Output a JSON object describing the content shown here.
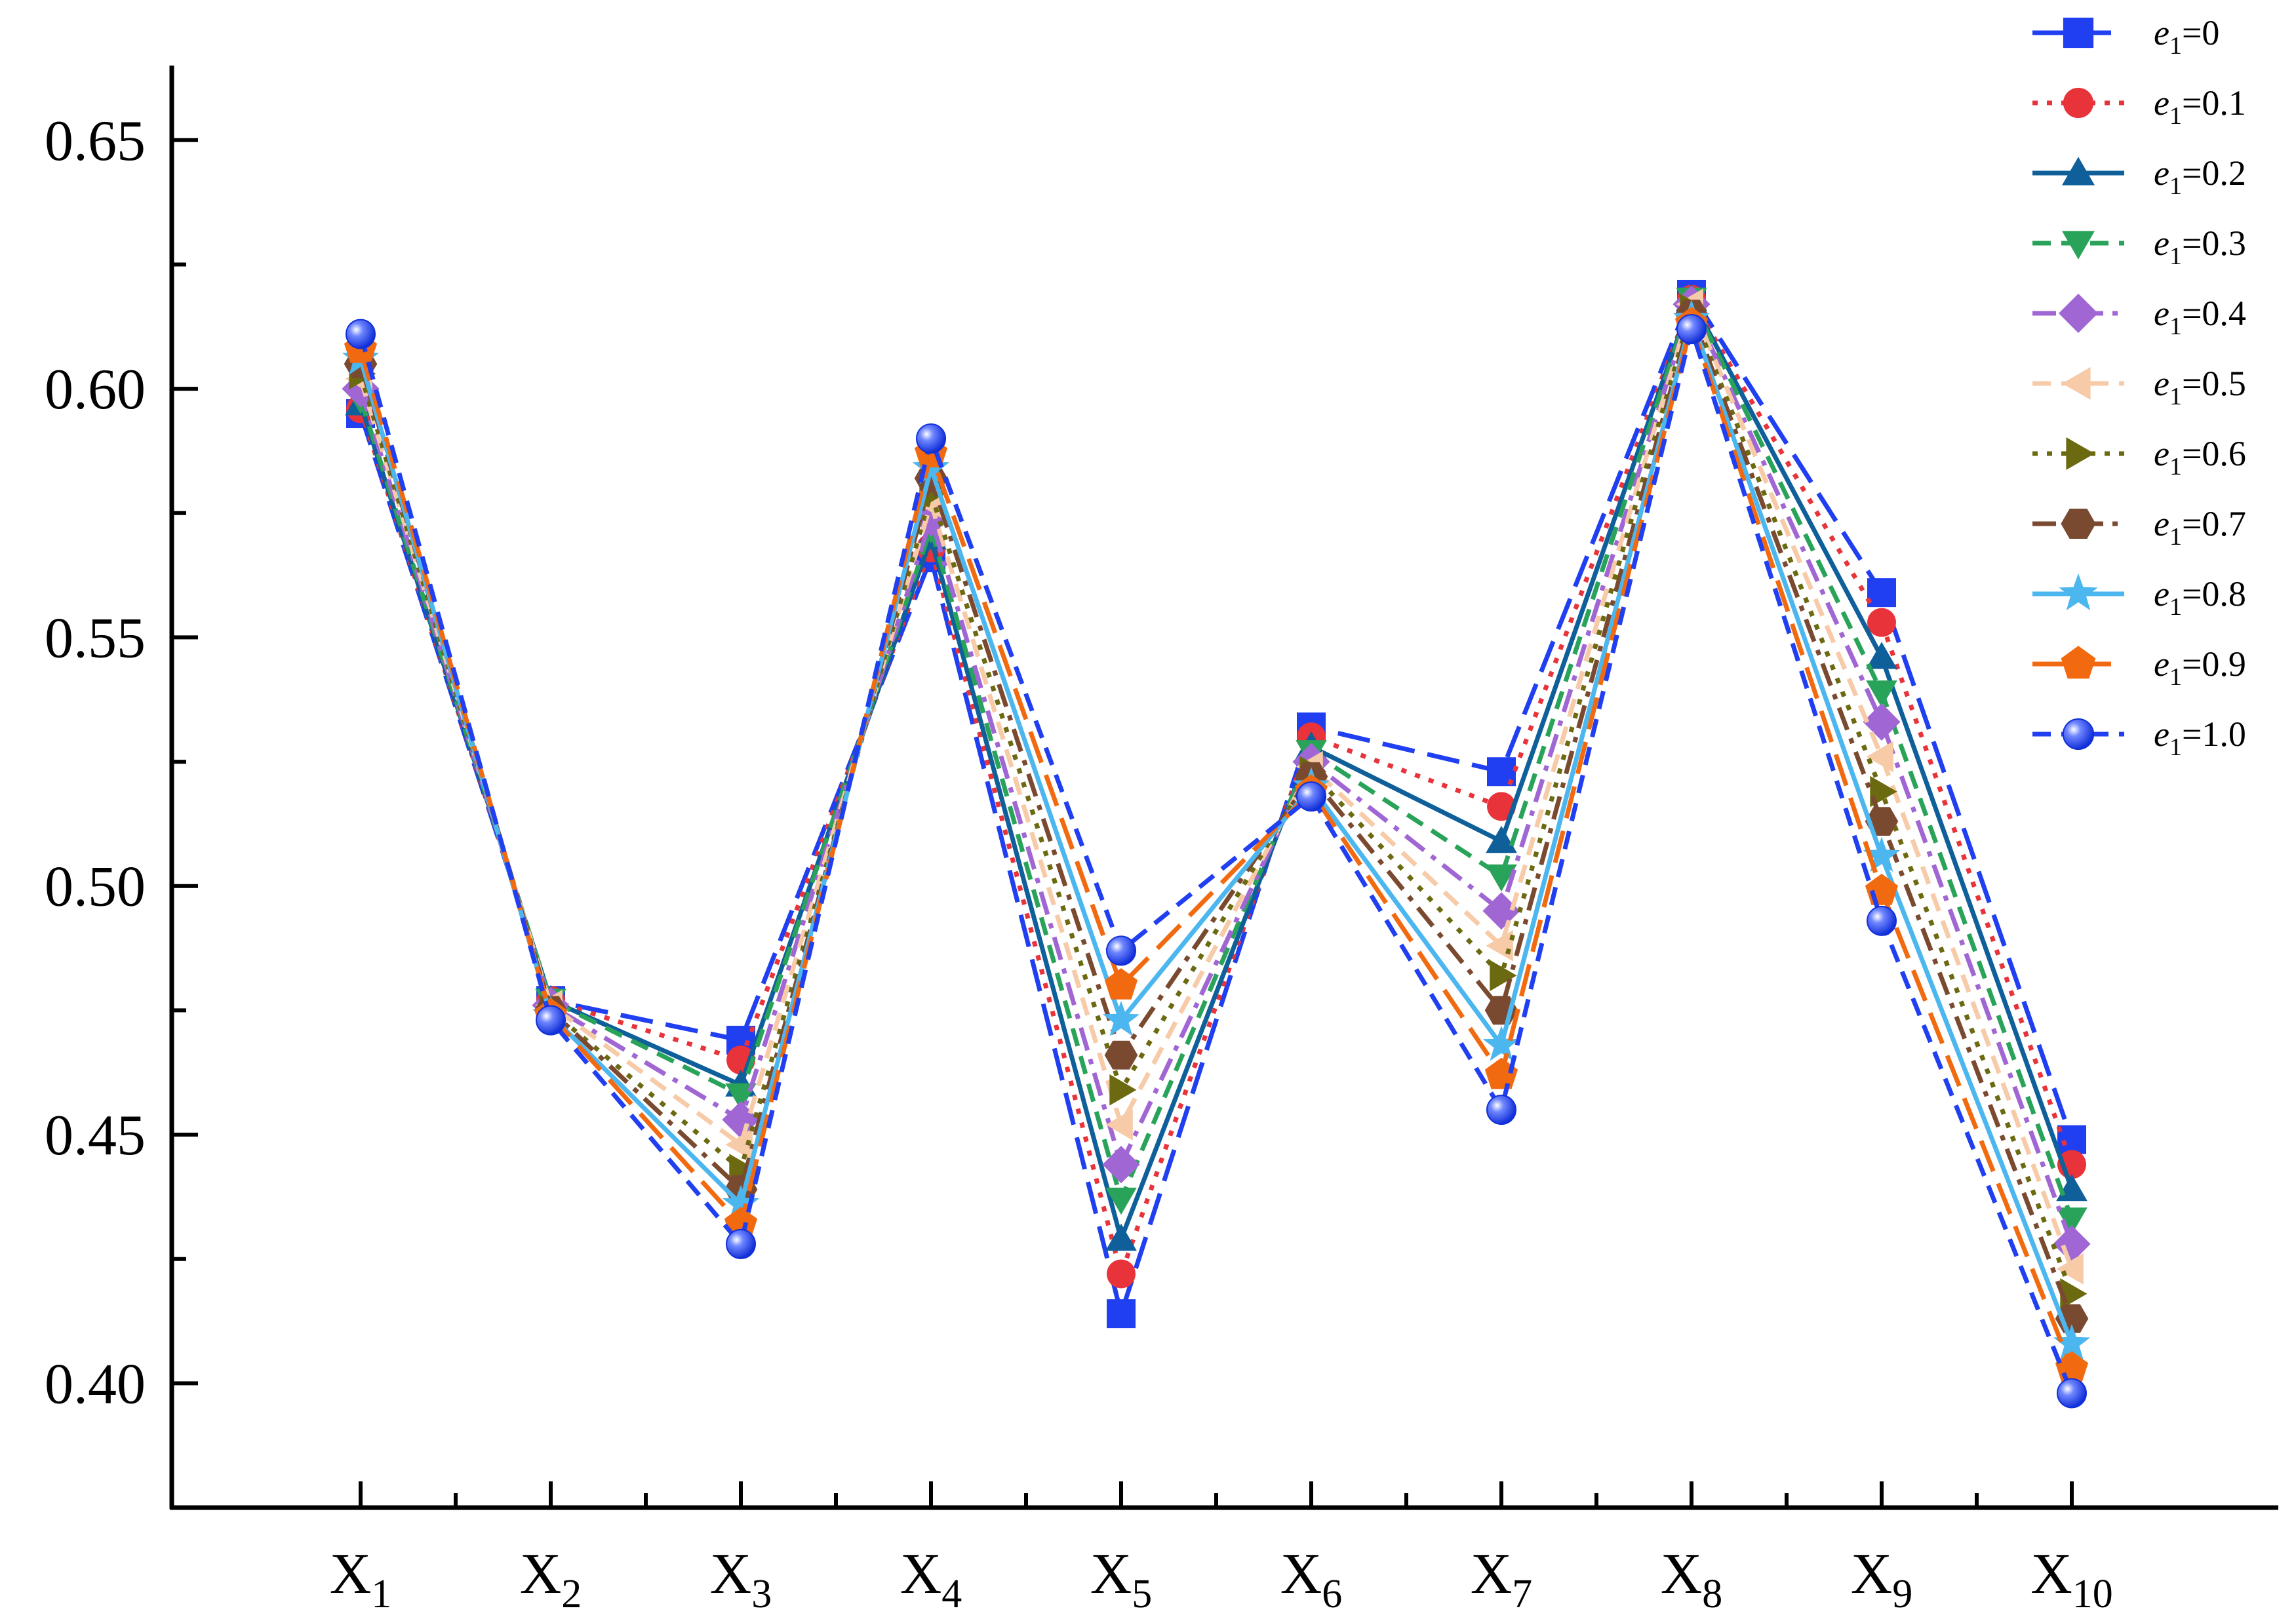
{
  "chart_data": {
    "type": "line",
    "title": "",
    "xlabel": "",
    "ylabel": "",
    "categories": [
      {
        "main": "X",
        "sub": "1"
      },
      {
        "main": "X",
        "sub": "2"
      },
      {
        "main": "X",
        "sub": "3"
      },
      {
        "main": "X",
        "sub": "4"
      },
      {
        "main": "X",
        "sub": "5"
      },
      {
        "main": "X",
        "sub": "6"
      },
      {
        "main": "X",
        "sub": "7"
      },
      {
        "main": "X",
        "sub": "8"
      },
      {
        "main": "X",
        "sub": "9"
      },
      {
        "main": "X",
        "sub": "10"
      }
    ],
    "ylim": [
      0.375,
      0.665
    ],
    "yticks": [
      "0.40",
      "0.45",
      "0.50",
      "0.55",
      "0.60",
      "0.65"
    ],
    "grid": false,
    "legend_position": "top-right",
    "series": [
      {
        "name": "e1=0",
        "label": {
          "var": "e",
          "sub": "1",
          "val": "=0"
        },
        "color": "#1f3ff0",
        "dash": "long",
        "marker": "square",
        "values": [
          0.595,
          0.477,
          0.469,
          0.566,
          0.414,
          0.532,
          0.523,
          0.619,
          0.559,
          0.449
        ]
      },
      {
        "name": "e1=0.1",
        "label": {
          "var": "e",
          "sub": "1",
          "val": "=0.1"
        },
        "color": "#e8333a",
        "dash": "dot",
        "marker": "circle",
        "values": [
          0.596,
          0.477,
          0.465,
          0.568,
          0.422,
          0.53,
          0.516,
          0.618,
          0.553,
          0.444
        ]
      },
      {
        "name": "e1=0.2",
        "label": {
          "var": "e",
          "sub": "1",
          "val": "=0.2"
        },
        "color": "#0e5f9a",
        "dash": "solid",
        "marker": "triangle-up",
        "values": [
          0.597,
          0.477,
          0.46,
          0.57,
          0.429,
          0.528,
          0.509,
          0.618,
          0.546,
          0.439
        ]
      },
      {
        "name": "e1=0.3",
        "label": {
          "var": "e",
          "sub": "1",
          "val": "=0.3"
        },
        "color": "#2aa35a",
        "dash": "dash",
        "marker": "triangle-down",
        "values": [
          0.598,
          0.477,
          0.458,
          0.572,
          0.437,
          0.527,
          0.502,
          0.618,
          0.539,
          0.433
        ]
      },
      {
        "name": "e1=0.4",
        "label": {
          "var": "e",
          "sub": "1",
          "val": "=0.4"
        },
        "color": "#a066d3",
        "dash": "dashdot",
        "marker": "diamond",
        "values": [
          0.6,
          0.476,
          0.453,
          0.574,
          0.444,
          0.525,
          0.495,
          0.617,
          0.533,
          0.428
        ]
      },
      {
        "name": "e1=0.5",
        "label": {
          "var": "e",
          "sub": "1",
          "val": "=0.5"
        },
        "color": "#f7caa8",
        "dash": "dash",
        "marker": "triangle-left",
        "values": [
          0.602,
          0.476,
          0.448,
          0.577,
          0.452,
          0.524,
          0.488,
          0.617,
          0.526,
          0.423
        ]
      },
      {
        "name": "e1=0.6",
        "label": {
          "var": "e",
          "sub": "1",
          "val": "=0.6"
        },
        "color": "#6b6a10",
        "dash": "dot",
        "marker": "triangle-right",
        "values": [
          0.603,
          0.475,
          0.443,
          0.579,
          0.459,
          0.523,
          0.482,
          0.616,
          0.519,
          0.418
        ]
      },
      {
        "name": "e1=0.7",
        "label": {
          "var": "e",
          "sub": "1",
          "val": "=0.7"
        },
        "color": "#7a4a30",
        "dash": "dashdot",
        "marker": "hexagon",
        "values": [
          0.605,
          0.475,
          0.439,
          0.582,
          0.466,
          0.522,
          0.475,
          0.615,
          0.513,
          0.413
        ]
      },
      {
        "name": "e1=0.8",
        "label": {
          "var": "e",
          "sub": "1",
          "val": "=0.8"
        },
        "color": "#4cb6ef",
        "dash": "solid",
        "marker": "star",
        "values": [
          0.606,
          0.474,
          0.436,
          0.584,
          0.473,
          0.52,
          0.468,
          0.614,
          0.506,
          0.408
        ]
      },
      {
        "name": "e1=0.9",
        "label": {
          "var": "e",
          "sub": "1",
          "val": "=0.9"
        },
        "color": "#f26a10",
        "dash": "long",
        "marker": "pentagon",
        "values": [
          0.608,
          0.474,
          0.432,
          0.587,
          0.48,
          0.519,
          0.462,
          0.613,
          0.499,
          0.403
        ]
      },
      {
        "name": "e1=1.0",
        "label": {
          "var": "e",
          "sub": "1",
          "val": "=1.0"
        },
        "color": "#1f3ff0",
        "dash": "dash",
        "marker": "sphere",
        "values": [
          0.611,
          0.473,
          0.428,
          0.59,
          0.487,
          0.518,
          0.455,
          0.612,
          0.493,
          0.398
        ]
      }
    ]
  }
}
